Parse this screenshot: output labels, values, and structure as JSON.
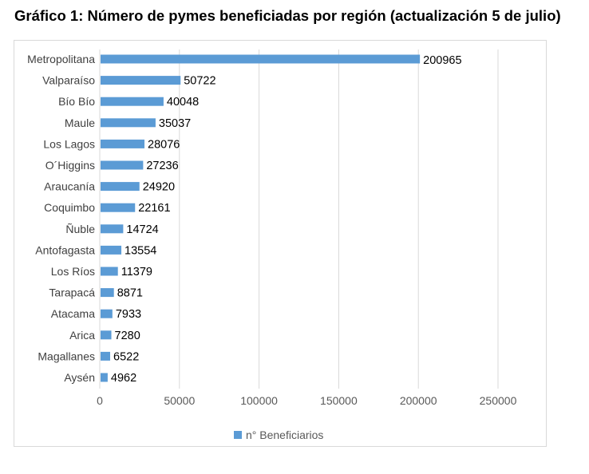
{
  "title": "Gráfico 1: Número de pymes beneficiadas por región (actualización 5 de julio)",
  "chart_data": {
    "type": "bar",
    "orientation": "horizontal",
    "categories": [
      "Metropolitana",
      "Valparaíso",
      "Bío Bío",
      "Maule",
      "Los Lagos",
      "O´Higgins",
      "Araucanía",
      "Coquimbo",
      "Ñuble",
      "Antofagasta",
      "Los Ríos",
      "Tarapacá",
      "Atacama",
      "Arica",
      "Magallanes",
      "Aysén"
    ],
    "series": [
      {
        "name": "n° Beneficiarios",
        "values": [
          200965,
          50722,
          40048,
          35037,
          28076,
          27236,
          24920,
          22161,
          14724,
          13554,
          11379,
          8871,
          7933,
          7280,
          6522,
          4962
        ],
        "color": "#5b9bd5"
      }
    ],
    "xlim": [
      0,
      250000
    ],
    "xticks": [
      "0",
      "50000",
      "100000",
      "150000",
      "200000",
      "250000"
    ],
    "grid": true,
    "legend_position": "bottom"
  }
}
